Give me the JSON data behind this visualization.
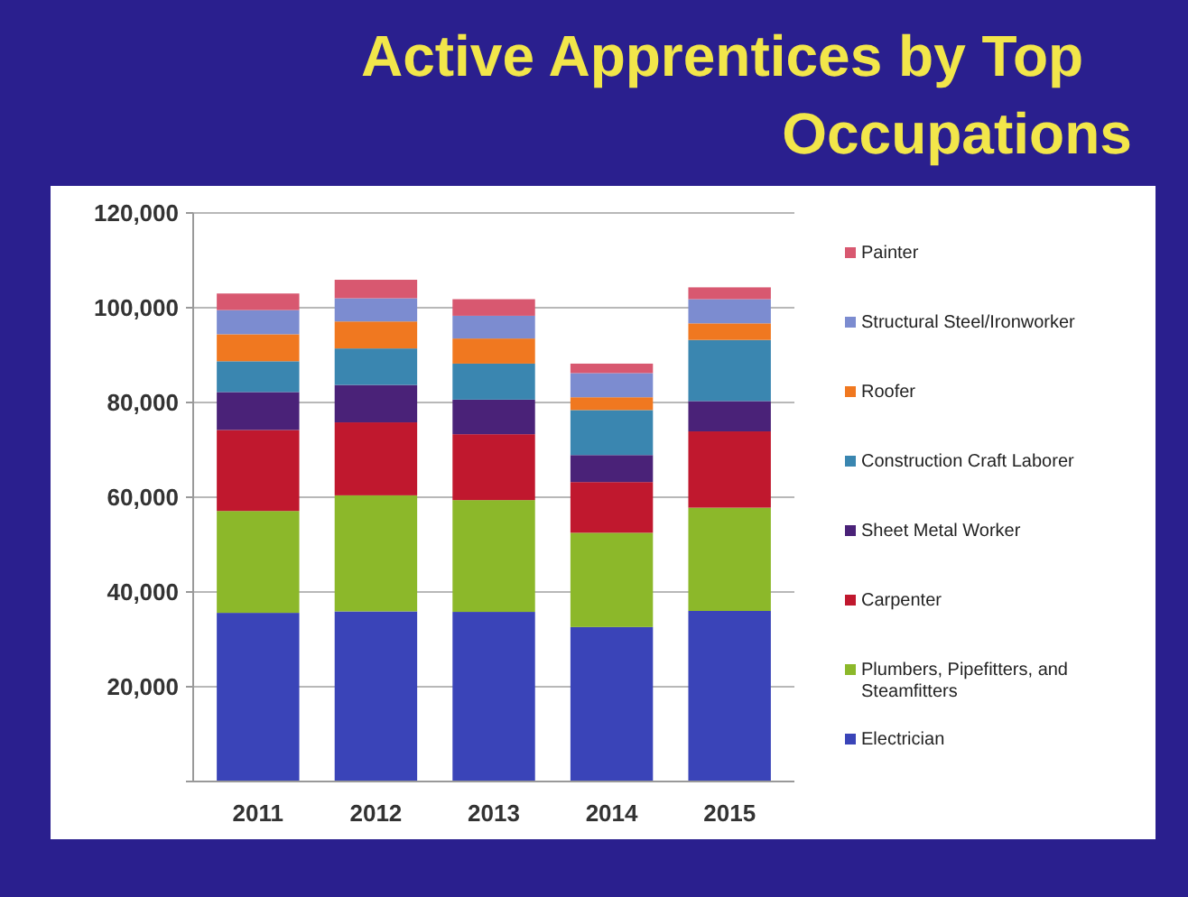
{
  "chart_data": {
    "type": "bar",
    "stacked": true,
    "title": "Active Apprentices by Top Occupations",
    "categories": [
      "2011",
      "2012",
      "2013",
      "2014",
      "2015"
    ],
    "series": [
      {
        "name": "Electrician",
        "color": "#3a44b8",
        "values": [
          35600,
          35900,
          35800,
          32600,
          36000
        ]
      },
      {
        "name": "Plumbers, Pipefitters, and Steamfitters",
        "color": "#8cb82a",
        "values": [
          21500,
          24500,
          23600,
          19900,
          21800
        ]
      },
      {
        "name": "Carpenter",
        "color": "#c0182e",
        "values": [
          17100,
          15400,
          13900,
          10700,
          16100
        ]
      },
      {
        "name": "Sheet Metal Worker",
        "color": "#4a2278",
        "values": [
          8000,
          7900,
          7300,
          5700,
          6400
        ]
      },
      {
        "name": "Construction Craft Laborer",
        "color": "#3a86b0",
        "values": [
          6500,
          7700,
          7600,
          9500,
          12900
        ]
      },
      {
        "name": "Roofer",
        "color": "#f07820",
        "values": [
          5700,
          5700,
          5300,
          2700,
          3500
        ]
      },
      {
        "name": "Structural Steel/Ironworker",
        "color": "#7c8cd0",
        "values": [
          5100,
          4900,
          4800,
          5100,
          5100
        ]
      },
      {
        "name": "Painter",
        "color": "#d85870",
        "values": [
          3500,
          3900,
          3500,
          2000,
          2500
        ]
      }
    ],
    "ylim": [
      0,
      120000
    ],
    "yticks": [
      {
        "value": 0,
        "label": null
      },
      {
        "value": 20000,
        "label": "20,000"
      },
      {
        "value": 40000,
        "label": "40,000"
      },
      {
        "value": 60000,
        "label": "60,000"
      },
      {
        "value": 80000,
        "label": "80,000"
      },
      {
        "value": 100000,
        "label": "100,000"
      },
      {
        "value": 120000,
        "label": "120,000"
      }
    ],
    "grid": "y",
    "legend": "right"
  }
}
